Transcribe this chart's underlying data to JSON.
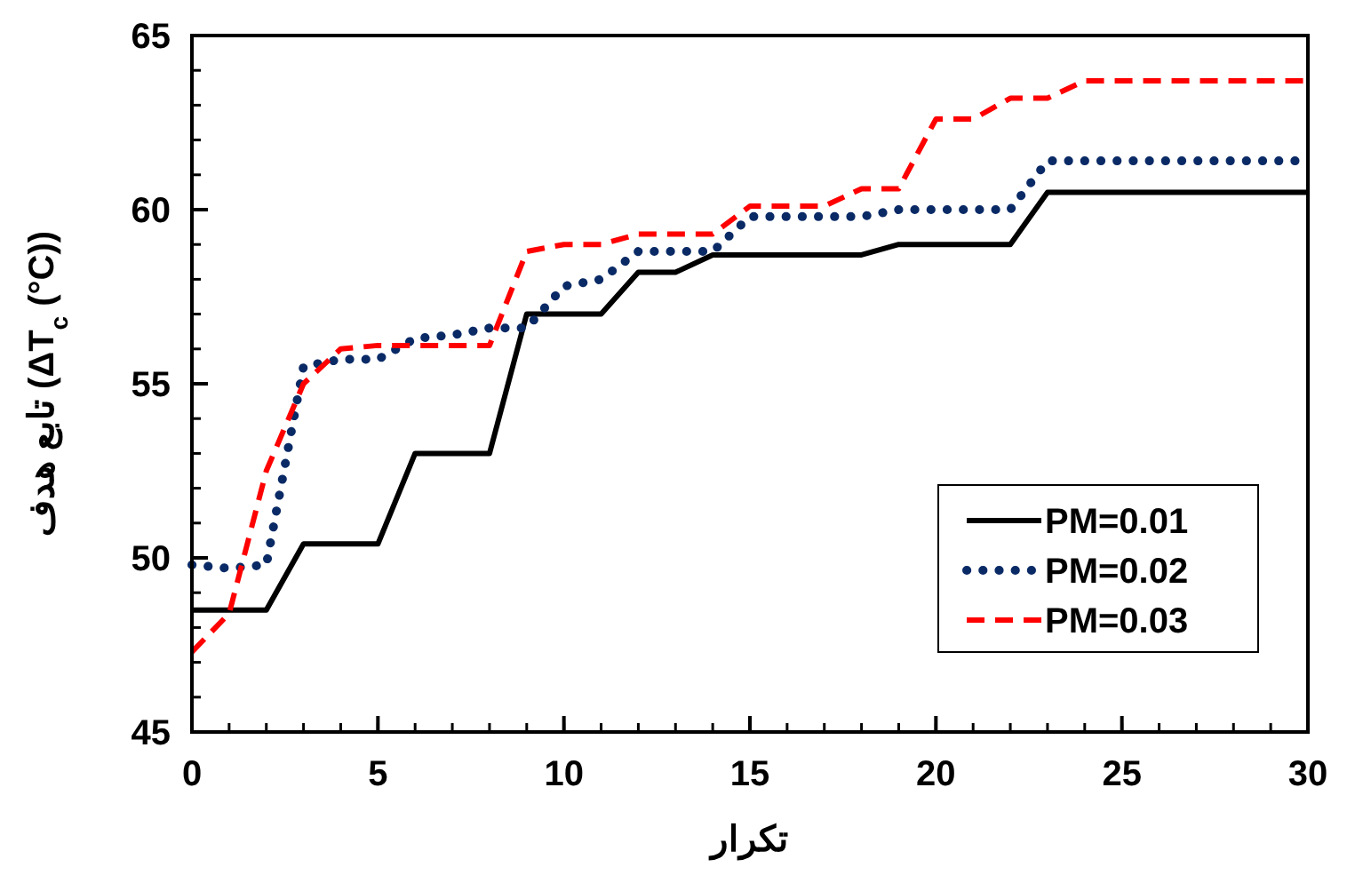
{
  "chart_data": {
    "type": "line",
    "xlabel": "تکرار",
    "ylabel": "تابع هدف (ΔT$_{c}$ (°C))",
    "x": [
      0,
      1,
      2,
      3,
      4,
      5,
      6,
      7,
      8,
      9,
      10,
      11,
      12,
      13,
      14,
      15,
      16,
      17,
      18,
      19,
      20,
      21,
      22,
      23,
      24,
      25,
      26,
      27,
      28,
      29,
      30
    ],
    "xlim": [
      0,
      30
    ],
    "xticks": [
      0,
      5,
      10,
      15,
      20,
      25,
      30
    ],
    "ylim": [
      45,
      65
    ],
    "yticks": [
      45,
      50,
      55,
      60,
      65
    ],
    "legend": "bottom right",
    "grid": false,
    "series": [
      {
        "name": "PM=0.01",
        "color": "#000000",
        "line_style": "solid",
        "values": [
          48.5,
          48.5,
          48.5,
          50.4,
          50.4,
          50.4,
          53,
          53,
          53,
          57,
          57,
          57,
          58.2,
          58.2,
          58.7,
          58.7,
          58.7,
          58.7,
          58.7,
          59,
          59,
          59,
          59,
          60.5,
          60.5,
          60.5,
          60.5,
          60.5,
          60.5,
          60.5,
          60.5
        ]
      },
      {
        "name": "PM=0.02",
        "color": "#0a2a66",
        "line_style": "dotted",
        "values": [
          49.8,
          49.7,
          49.8,
          55.5,
          55.7,
          55.7,
          56.3,
          56.4,
          56.6,
          56.6,
          57.8,
          58,
          58.8,
          58.8,
          58.8,
          59.8,
          59.8,
          59.8,
          59.8,
          60,
          60,
          60,
          60,
          61.4,
          61.4,
          61.4,
          61.4,
          61.4,
          61.4,
          61.4,
          61.4
        ]
      },
      {
        "name": "PM=0.03",
        "color": "#ff0000",
        "line_style": "dashed",
        "values": [
          47.3,
          48.4,
          52.5,
          55,
          56,
          56.1,
          56.1,
          56.1,
          56.1,
          58.8,
          59,
          59,
          59.3,
          59.3,
          59.3,
          60.1,
          60.1,
          60.1,
          60.6,
          60.6,
          62.6,
          62.6,
          63.2,
          63.2,
          63.7,
          63.7,
          63.7,
          63.7,
          63.7,
          63.7,
          63.7
        ]
      }
    ]
  }
}
